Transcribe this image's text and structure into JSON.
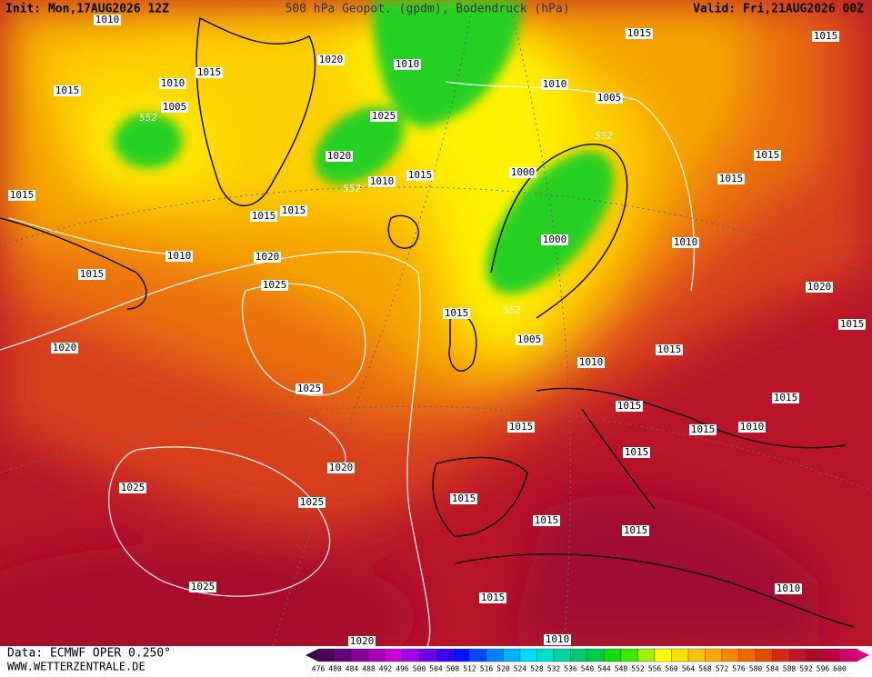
{
  "header": {
    "init": "Init: Mon,17AUG2026 12Z",
    "title": "500 hPa Geopot. (gpdm), Bodendruck (hPa)",
    "valid": "Valid: Fri,21AUG2026 00Z"
  },
  "footer": {
    "source": "Data: ECMWF OPER 0.250°",
    "url": "WWW.WETTERZENTRALE.DE"
  },
  "legend": {
    "levels": [
      476,
      480,
      484,
      488,
      492,
      496,
      500,
      504,
      508,
      512,
      516,
      520,
      524,
      528,
      532,
      536,
      540,
      544,
      548,
      552,
      556,
      560,
      564,
      568,
      572,
      576,
      580,
      584,
      588,
      592,
      596,
      600
    ]
  },
  "map": {
    "isobar_labels": [
      "1010",
      "1015",
      "1015",
      "1015",
      "1010",
      "1020",
      "1010",
      "1015",
      "1005",
      "1010",
      "1005",
      "1025",
      "1020",
      "1010",
      "1015",
      "1000",
      "1015",
      "1015",
      "1015",
      "1015",
      "1015",
      "1000",
      "1010",
      "1010",
      "1020",
      "1015",
      "1025",
      "1020",
      "1015",
      "1015",
      "1020",
      "1005",
      "1015",
      "1010",
      "1025",
      "1015",
      "1015",
      "1015",
      "1015",
      "1010",
      "1015",
      "1020",
      "1025",
      "1015",
      "1025",
      "1015",
      "1015",
      "1025",
      "1010",
      "1015",
      "1010",
      "1020"
    ],
    "height_labels": [
      "552",
      "552",
      "552",
      "552"
    ]
  }
}
